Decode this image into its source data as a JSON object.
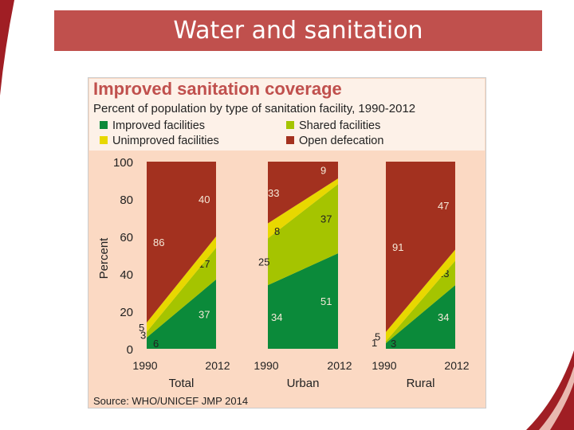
{
  "slide": {
    "title": "Water and sanitation",
    "colors": {
      "title_bar": "#c0504d",
      "accent": "#a01e24"
    }
  },
  "chart_data": {
    "type": "area",
    "title": "Improved sanitation coverage",
    "subtitle": "Percent of population by type of sanitation facility, 1990-2012",
    "ylabel": "Percent",
    "ylim": [
      0,
      100
    ],
    "yticks": [
      0,
      20,
      40,
      60,
      80,
      100
    ],
    "stack_order": [
      "Improved facilities",
      "Shared facilities",
      "Unimproved facilities",
      "Open defecation"
    ],
    "legend": [
      {
        "name": "Improved facilities",
        "color": "#0b8a3a"
      },
      {
        "name": "Shared facilities",
        "color": "#a5c400"
      },
      {
        "name": "Unimproved facilities",
        "color": "#e8d800"
      },
      {
        "name": "Open defecation",
        "color": "#a3311f"
      }
    ],
    "panels": [
      {
        "name": "Total",
        "x": [
          "1990",
          "2012"
        ],
        "series": [
          {
            "name": "Improved facilities",
            "values": [
              6,
              37
            ]
          },
          {
            "name": "Shared facilities",
            "values": [
              3,
              17
            ]
          },
          {
            "name": "Unimproved facilities",
            "values": [
              5,
              6
            ]
          },
          {
            "name": "Open defecation",
            "values": [
              86,
              40
            ]
          }
        ]
      },
      {
        "name": "Urban",
        "x": [
          "1990",
          "2012"
        ],
        "series": [
          {
            "name": "Improved facilities",
            "values": [
              34,
              51
            ]
          },
          {
            "name": "Shared facilities",
            "values": [
              25,
              37
            ]
          },
          {
            "name": "Unimproved facilities",
            "values": [
              8,
              3
            ]
          },
          {
            "name": "Open defecation",
            "values": [
              33,
              9
            ]
          }
        ]
      },
      {
        "name": "Rural",
        "x": [
          "1990",
          "2012"
        ],
        "series": [
          {
            "name": "Improved facilities",
            "values": [
              3,
              34
            ]
          },
          {
            "name": "Shared facilities",
            "values": [
              1,
              13
            ]
          },
          {
            "name": "Unimproved facilities",
            "values": [
              5,
              6
            ]
          },
          {
            "name": "Open defecation",
            "values": [
              91,
              47
            ]
          }
        ]
      }
    ],
    "source": "Source:  WHO/UNICEF JMP 2014"
  }
}
